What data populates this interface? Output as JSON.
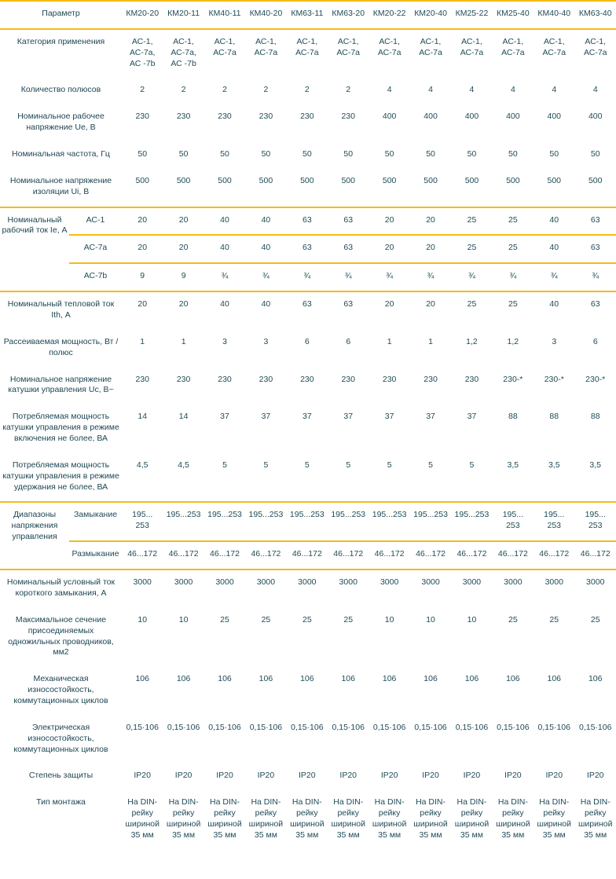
{
  "colors": {
    "text": "#214c59",
    "label": "#1d4653",
    "separator_line": "#f5bb17",
    "background": "#ffffff"
  },
  "table": {
    "header": {
      "param_label": "Параметр",
      "models": [
        "КМ20-20",
        "КМ20-11",
        "КМ40-11",
        "КМ40-20",
        "КМ63-11",
        "КМ63-20",
        "КМ20-22",
        "КМ20-40",
        "КМ25-22",
        "КМ25-40",
        "КМ40-40",
        "КМ63-40"
      ]
    },
    "rows": [
      {
        "id": "category",
        "label": "Категория применения",
        "values": [
          "АС-1, АС-7а, АС -7b",
          "АС-1, АС-7а, АС -7b",
          "АС-1, АС-7а",
          "АС-1, АС-7а",
          "АС-1, АС-7а",
          "АС-1, АС-7а",
          "АС-1, АС-7а",
          "АС-1, АС-7а",
          "АС-1, АС-7а",
          "АС-1, АС-7а",
          "АС-1, АС-7а",
          "АС-1, АС-7а"
        ]
      },
      {
        "id": "poles",
        "label": "Количество полюсов",
        "values": [
          "2",
          "2",
          "2",
          "2",
          "2",
          "2",
          "4",
          "4",
          "4",
          "4",
          "4",
          "4"
        ]
      },
      {
        "id": "ue",
        "label": "Номинальное рабочее напряжение Ue, В",
        "values": [
          "230",
          "230",
          "230",
          "230",
          "230",
          "230",
          "400",
          "400",
          "400",
          "400",
          "400",
          "400"
        ]
      },
      {
        "id": "frequency",
        "label": "Номинальная частота, Гц",
        "values": [
          "50",
          "50",
          "50",
          "50",
          "50",
          "50",
          "50",
          "50",
          "50",
          "50",
          "50",
          "50"
        ]
      },
      {
        "id": "ui",
        "label": "Номинальное напряжение изоляции Ui, В",
        "values": [
          "500",
          "500",
          "500",
          "500",
          "500",
          "500",
          "500",
          "500",
          "500",
          "500",
          "500",
          "500"
        ],
        "line_below": true
      },
      {
        "id": "ie",
        "label": "Номинальный рабочий ток Ie, А",
        "subrows": [
          {
            "label": "АС-1",
            "values": [
              "20",
              "20",
              "40",
              "40",
              "63",
              "63",
              "20",
              "20",
              "25",
              "25",
              "40",
              "63"
            ]
          },
          {
            "label": "АС-7а",
            "values": [
              "20",
              "20",
              "40",
              "40",
              "63",
              "63",
              "20",
              "20",
              "25",
              "25",
              "40",
              "63"
            ]
          },
          {
            "label": "АС-7b",
            "values": [
              "9",
              "9",
              "¾",
              "¾",
              "¾",
              "¾",
              "¾",
              "¾",
              "¾",
              "¾",
              "¾",
              "¾"
            ]
          }
        ],
        "line_below": true
      },
      {
        "id": "ith",
        "label": "Номинальный тепловой ток Ith, А",
        "values": [
          "20",
          "20",
          "40",
          "40",
          "63",
          "63",
          "20",
          "20",
          "25",
          "25",
          "40",
          "63"
        ]
      },
      {
        "id": "power_dissipation",
        "label": "Рассеиваемая мощность, Вт / полюс",
        "values": [
          "1",
          "1",
          "3",
          "3",
          "6",
          "6",
          "1",
          "1",
          "1,2",
          "1,2",
          "3",
          "6"
        ]
      },
      {
        "id": "uc",
        "label": "Номинальное напряжение катушки управления Uc, В~",
        "values": [
          "230",
          "230",
          "230",
          "230",
          "230",
          "230",
          "230",
          "230",
          "230",
          "230-*",
          "230-*",
          "230-*"
        ]
      },
      {
        "id": "coil_power_on",
        "label": "Потребляемая мощность катушки управления в режиме включения не более, ВА",
        "values": [
          "14",
          "14",
          "37",
          "37",
          "37",
          "37",
          "37",
          "37",
          "37",
          "88",
          "88",
          "88"
        ]
      },
      {
        "id": "coil_power_hold",
        "label": "Потребляемая мощность катушки управления в режиме удержания не более, ВА",
        "values": [
          "4,5",
          "4,5",
          "5",
          "5",
          "5",
          "5",
          "5",
          "5",
          "5",
          "3,5",
          "3,5",
          "3,5"
        ],
        "line_below": true
      },
      {
        "id": "control_voltage_ranges",
        "label": "Диапазоны напряжения управления",
        "subrows": [
          {
            "label": "Замыкание",
            "values": [
              "195...\n253",
              "195...253",
              "195...253",
              "195...253",
              "195...253",
              "195...253",
              "195...253",
              "195...253",
              "195...253",
              "195...\n253",
              "195...\n253",
              "195...\n253"
            ]
          },
          {
            "label": "Размыкание",
            "values": [
              "46...172",
              "46...172",
              "46...172",
              "46...172",
              "46...172",
              "46...172",
              "46...172",
              "46...172",
              "46...172",
              "46...172",
              "46...172",
              "46...172"
            ]
          }
        ],
        "line_below": true
      },
      {
        "id": "short_circuit_current",
        "label": "Номинальный условный ток короткого замыкания, А",
        "values": [
          "3000",
          "3000",
          "3000",
          "3000",
          "3000",
          "3000",
          "3000",
          "3000",
          "3000",
          "3000",
          "3000",
          "3000"
        ]
      },
      {
        "id": "max_conductor_section",
        "label": "Максимальное сечение присоединяемых одножильных проводников, мм2",
        "values": [
          "10",
          "10",
          "25",
          "25",
          "25",
          "25",
          "10",
          "10",
          "10",
          "25",
          "25",
          "25"
        ]
      },
      {
        "id": "mechanical_endurance",
        "label": "Механическая износостойкость, коммутационных циклов",
        "values": [
          "106",
          "106",
          "106",
          "106",
          "106",
          "106",
          "106",
          "106",
          "106",
          "106",
          "106",
          "106"
        ]
      },
      {
        "id": "electrical_endurance",
        "label": "Электрическая износостойкость, коммутационных циклов",
        "values": [
          "0,15·106",
          "0,15·106",
          "0,15·106",
          "0,15·106",
          "0,15·106",
          "0,15·106",
          "0,15·106",
          "0,15·106",
          "0,15·106",
          "0,15·106",
          "0,15·106",
          "0,15·106"
        ]
      },
      {
        "id": "protection_degree",
        "label": "Степень защиты",
        "values": [
          "IP20",
          "IP20",
          "IP20",
          "IP20",
          "IP20",
          "IP20",
          "IP20",
          "IP20",
          "IP20",
          "IP20",
          "IP20",
          "IP20"
        ]
      },
      {
        "id": "mounting_type",
        "label": "Тип монтажа",
        "values": [
          "На DIN-рейку шириной 35 мм",
          "На DIN-рейку шириной 35 мм",
          "На DIN-рейку шириной 35 мм",
          "На DIN-рейку шириной 35 мм",
          "На DIN-рейку шириной 35 мм",
          "На DIN-рейку шириной 35 мм",
          "На DIN-рейку шириной 35 мм",
          "На DIN-рейку шириной 35 мм",
          "На DIN-рейку шириной 35 мм",
          "На DIN-рейку шириной 35 мм",
          "На DIN-рейку шириной 35 мм",
          "На DIN-рейку шириной 35 мм"
        ]
      }
    ]
  }
}
